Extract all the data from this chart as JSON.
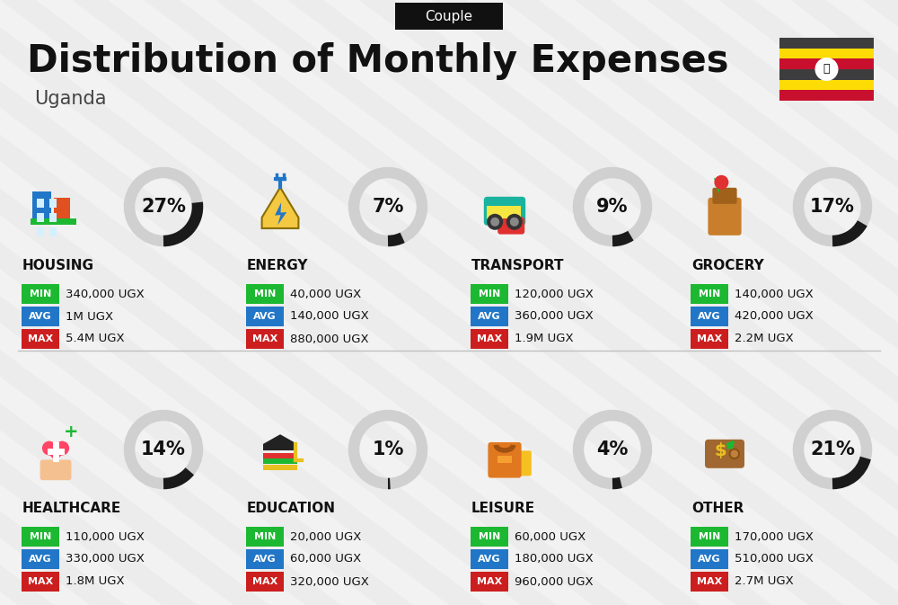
{
  "title": "Distribution of Monthly Expenses",
  "subtitle": "Uganda",
  "tag": "Couple",
  "bg_color": "#ececec",
  "categories": [
    {
      "name": "HOUSING",
      "pct": 27,
      "min": "340,000 UGX",
      "avg": "1M UGX",
      "max": "5.4M UGX",
      "col": 0,
      "row": 0
    },
    {
      "name": "ENERGY",
      "pct": 7,
      "min": "40,000 UGX",
      "avg": "140,000 UGX",
      "max": "880,000 UGX",
      "col": 1,
      "row": 0
    },
    {
      "name": "TRANSPORT",
      "pct": 9,
      "min": "120,000 UGX",
      "avg": "360,000 UGX",
      "max": "1.9M UGX",
      "col": 2,
      "row": 0
    },
    {
      "name": "GROCERY",
      "pct": 17,
      "min": "140,000 UGX",
      "avg": "420,000 UGX",
      "max": "2.2M UGX",
      "col": 3,
      "row": 0
    },
    {
      "name": "HEALTHCARE",
      "pct": 14,
      "min": "110,000 UGX",
      "avg": "330,000 UGX",
      "max": "1.8M UGX",
      "col": 0,
      "row": 1
    },
    {
      "name": "EDUCATION",
      "pct": 1,
      "min": "20,000 UGX",
      "avg": "60,000 UGX",
      "max": "320,000 UGX",
      "col": 1,
      "row": 1
    },
    {
      "name": "LEISURE",
      "pct": 4,
      "min": "60,000 UGX",
      "avg": "180,000 UGX",
      "max": "960,000 UGX",
      "col": 2,
      "row": 1
    },
    {
      "name": "OTHER",
      "pct": 21,
      "min": "170,000 UGX",
      "avg": "510,000 UGX",
      "max": "2.7M UGX",
      "col": 3,
      "row": 1
    }
  ],
  "min_color": "#1db832",
  "avg_color": "#2176c7",
  "max_color": "#cc1e1e",
  "arc_dark": "#1a1a1a",
  "arc_light": "#d0d0d0",
  "stripe_color": "#ffffff",
  "flag_stripes": [
    "#3d3d3d",
    "#FCDC04",
    "#C8102E",
    "#3d3d3d",
    "#FCDC04",
    "#C8102E"
  ]
}
